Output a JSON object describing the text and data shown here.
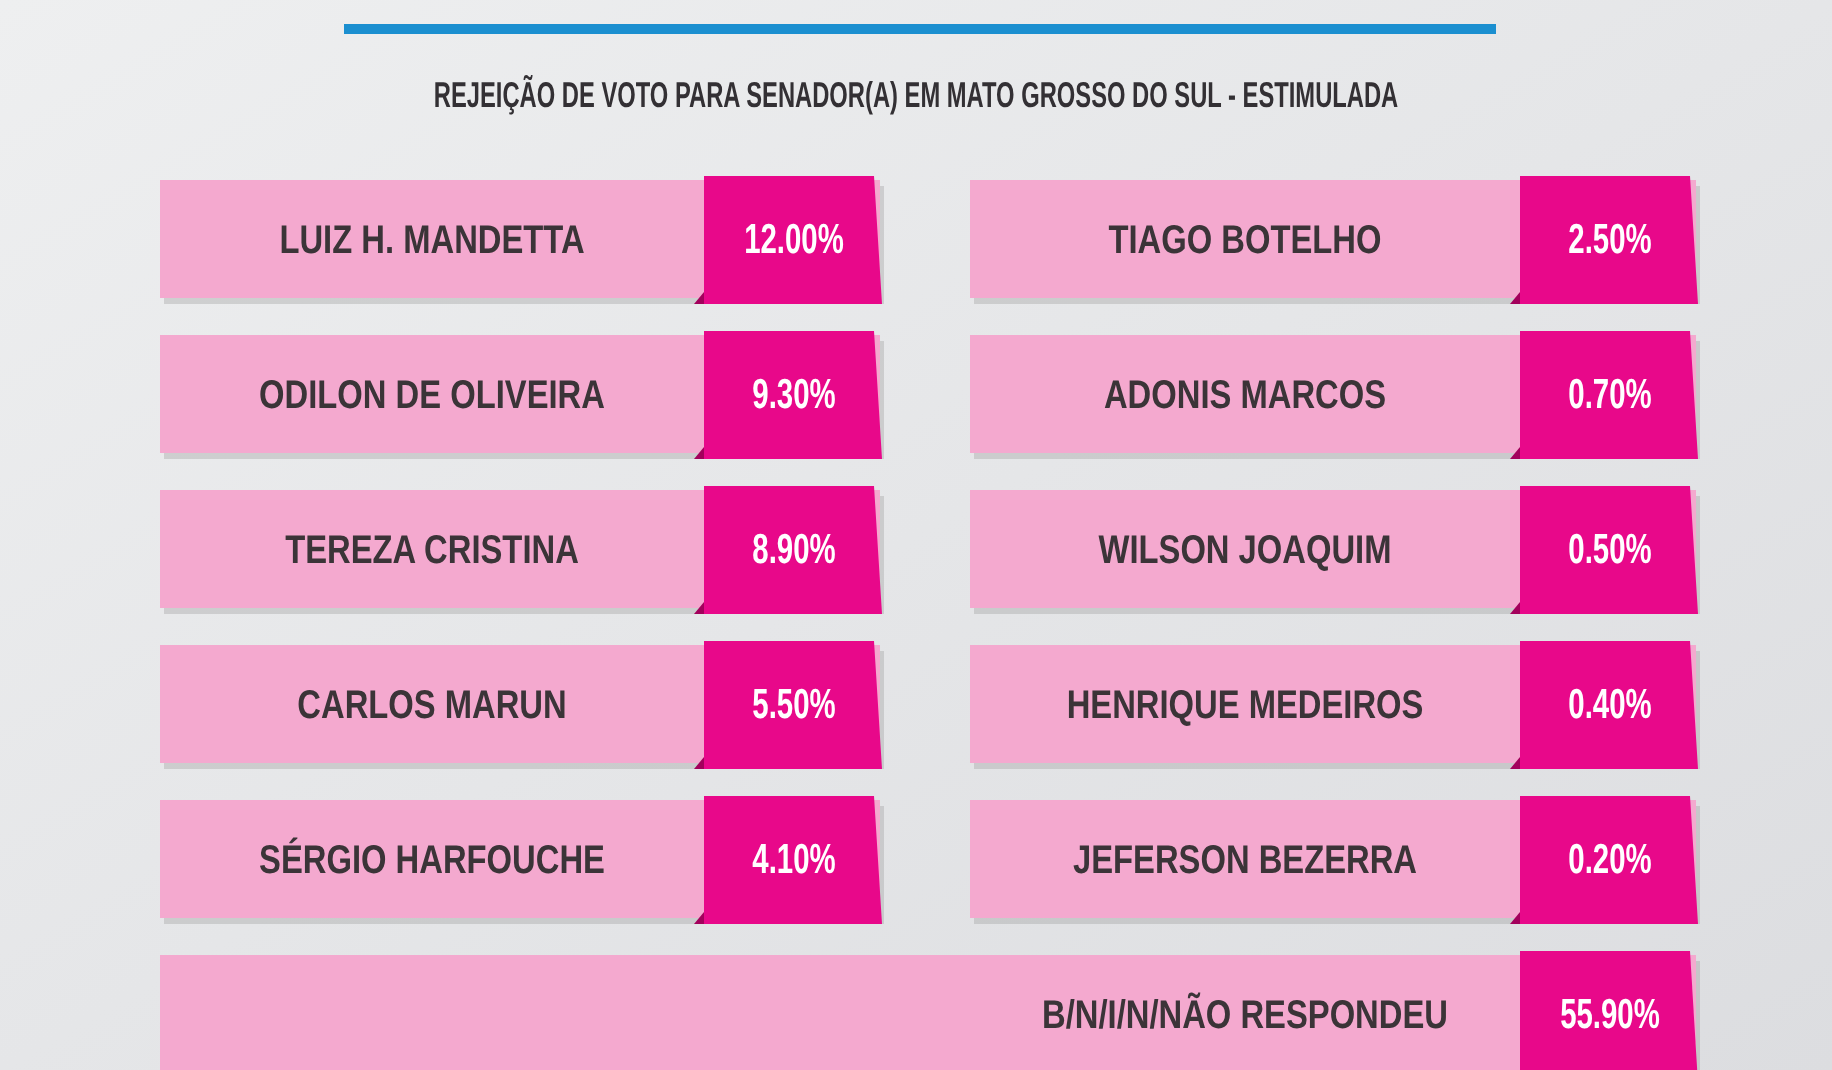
{
  "chart_data": {
    "type": "other",
    "title": "REJEIÇÃO DE VOTO PARA SENADOR(A) EM MATO GROSSO DO SUL - ESTIMULADA",
    "categories": [
      "LUIZ H. MANDETTA",
      "ODILON DE OLIVEIRA",
      "TEREZA CRISTINA",
      "CARLOS MARUN",
      "SÉRGIO HARFOUCHE",
      "TIAGO BOTELHO",
      "ADONIS MARCOS",
      "WILSON JOAQUIM",
      "HENRIQUE MEDEIROS",
      "JEFERSON BEZERRA",
      "B/N/I/N/NÃO RESPONDEU"
    ],
    "values": [
      12,
      9.3,
      8.9,
      5.5,
      4.1,
      2.5,
      0.7,
      0.5,
      0.4,
      0.2,
      55.9
    ],
    "value_labels": [
      "12.00%",
      "9.30%",
      "8.90%",
      "5.50%",
      "4.10%",
      "2.50%",
      "0.70%",
      "0.50%",
      "0.40%",
      "0.20%",
      "55.90%"
    ],
    "color": "#e8088a"
  }
}
